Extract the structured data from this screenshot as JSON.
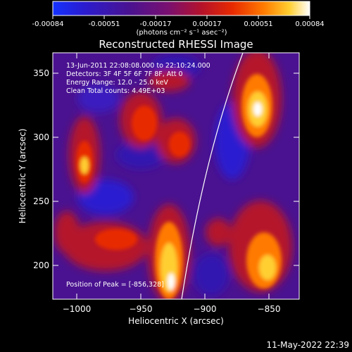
{
  "colorbar": {
    "ticks": [
      "-0.00084",
      "-0.00051",
      "-0.00017",
      "0.00017",
      "0.00051",
      "0.00084"
    ],
    "units": "(photons cm⁻² s⁻¹ asec⁻²)",
    "colors": [
      "#1432ff",
      "#2a1cd0",
      "#4a1290",
      "#7a1070",
      "#b5122a",
      "#e82a00",
      "#ff7a00",
      "#ffcf30",
      "#ffffff"
    ]
  },
  "title": "Reconstructed RHESSI Image",
  "annotations": {
    "time": "13-Jun-2011 22:08:08.000 to 22:10:24.000",
    "detectors": "Detectors: 3F 4F 5F 6F 7F 8F, Att 0",
    "energy": "Energy Range: 12.0 - 25.0 keV",
    "clean": "Clean    Total counts: 4.49E+03",
    "peak": "Position of Peak = [-856,328]"
  },
  "x_axis": {
    "label": "Heliocentric X (arcsec)",
    "ticks": [
      "−1000",
      "−950",
      "−900",
      "−850"
    ]
  },
  "y_axis": {
    "label": "Heliocentric Y (arcsec)",
    "ticks": [
      "350",
      "300",
      "250",
      "200"
    ]
  },
  "footer_date": "11-May-2022 22:39"
}
